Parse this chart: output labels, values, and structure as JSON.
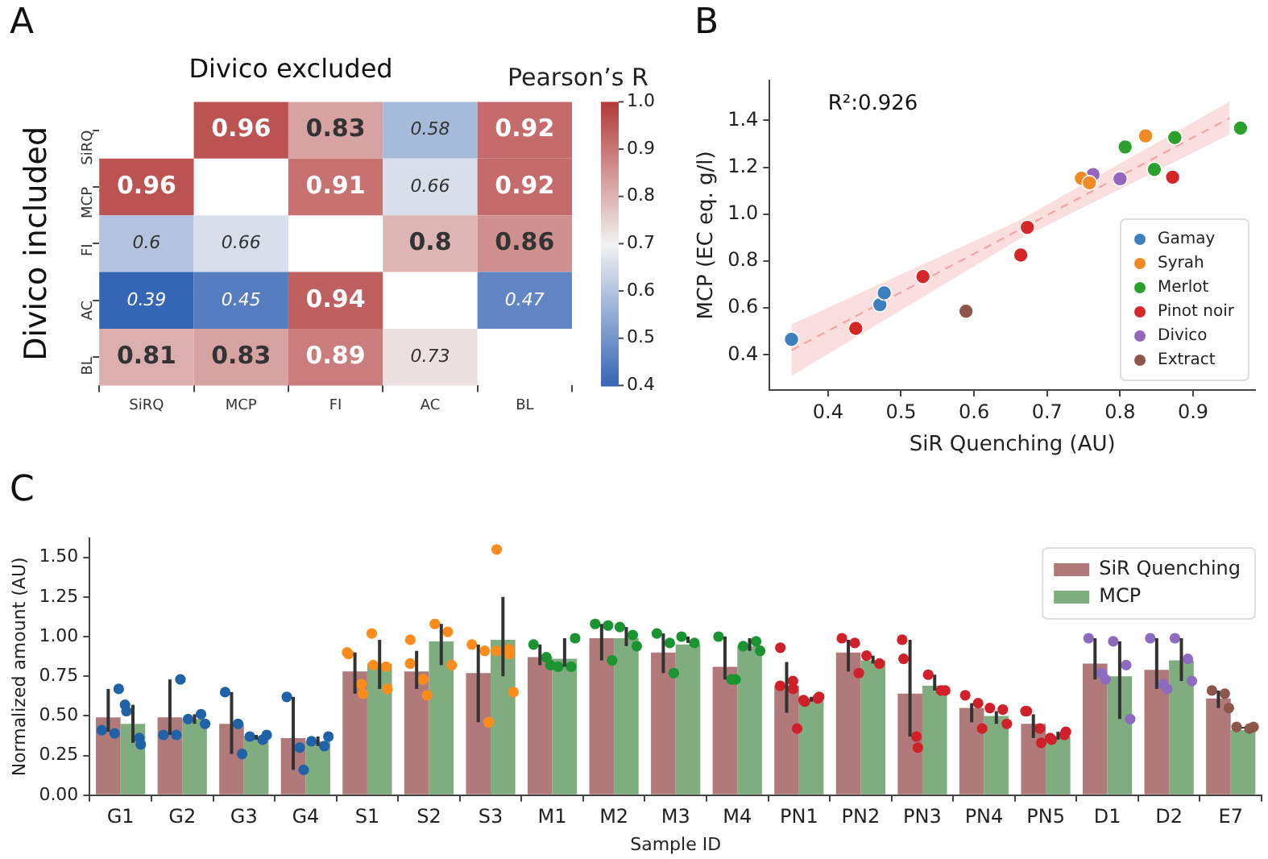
{
  "chart_data": [
    {
      "type": "heatmap",
      "title": "Divico excluded",
      "ylabel": "Divico included",
      "clabel": "Pearson’s R",
      "annotations": [
        "A"
      ],
      "categories": [
        "SiRQ",
        "MCP",
        "FI",
        "AC",
        "BL"
      ],
      "y_categories": [
        "SiRQ",
        "MCP",
        "FI",
        "AC",
        "BL"
      ],
      "cells": [
        [
          null,
          0.96,
          0.83,
          0.58,
          0.92
        ],
        [
          0.96,
          null,
          0.91,
          0.66,
          0.92
        ],
        [
          0.6,
          0.66,
          null,
          0.8,
          0.86
        ],
        [
          0.39,
          0.45,
          0.94,
          null,
          0.47
        ],
        [
          0.81,
          0.83,
          0.89,
          0.73,
          null
        ]
      ],
      "clim": [
        0.4,
        1.0
      ],
      "cticks": [
        0.4,
        0.5,
        0.6,
        0.7,
        0.8,
        0.9,
        {
          "value": 1,
          "label": "1.0"
        }
      ],
      "data_labels": true
    },
    {
      "type": "scatter",
      "xlabel": "SiR Quenching (AU)",
      "ylabel": "MCP (EC eq. g/l)",
      "annotations": [
        "B",
        "R²:0.926"
      ],
      "xlim": [
        0.32,
        0.985
      ],
      "ylim": [
        0.25,
        1.57
      ],
      "xticks": [
        0.4,
        0.5,
        0.6,
        0.7,
        0.8,
        0.9
      ],
      "yticks": [
        0.4,
        0.6,
        0.8,
        {
          "value": 1,
          "label": "1.0"
        },
        1.2,
        1.4
      ],
      "legend": "bottom right",
      "marker": "circle",
      "grid": false,
      "series": [
        {
          "name": "Gamay",
          "color": "#3b7fbf",
          "x": [
            0.35,
            0.471,
            0.477
          ],
          "values": [
            0.466,
            0.614,
            0.664
          ]
        },
        {
          "name": "Syrah",
          "color": "#f08a24",
          "x": [
            0.747,
            0.758,
            0.835
          ],
          "values": [
            1.153,
            1.134,
            1.334
          ]
        },
        {
          "name": "Merlot",
          "color": "#2ca02c",
          "x": [
            0.807,
            0.847,
            0.875,
            0.965
          ],
          "values": [
            1.287,
            1.191,
            1.327,
            1.367
          ]
        },
        {
          "name": "Pinot noir",
          "color": "#d62728",
          "x": [
            0.438,
            0.53,
            0.664,
            0.673,
            0.872
          ],
          "values": [
            0.513,
            0.734,
            0.826,
            0.944,
            1.158
          ]
        },
        {
          "name": "Divico",
          "color": "#9467bd",
          "x": [
            0.763,
            0.8
          ],
          "values": [
            1.169,
            1.151
          ]
        },
        {
          "name": "Extract",
          "color": "#8c564b",
          "x": [
            0.589
          ],
          "values": [
            0.586
          ]
        },
        {
          "type": "line",
          "color": "#f4a0a0",
          "line_style": "dashed",
          "marker": "none",
          "x": [
            0.35,
            0.66,
            0.95
          ],
          "values": [
            0.42,
            0.93,
            1.41
          ],
          "lower": [
            0.31,
            0.89,
            1.34
          ],
          "upper": [
            0.53,
            0.97,
            1.48
          ]
        }
      ]
    },
    {
      "type": "bar",
      "xlabel": "Sample ID",
      "ylabel": "Normalized amount (AU)",
      "annotations": [
        "C"
      ],
      "legend": "top right",
      "grid": false,
      "categories": [
        "G1",
        "G2",
        "G3",
        "G4",
        "S1",
        "S2",
        "S3",
        "M1",
        "M2",
        "M3",
        "M4",
        "PN1",
        "PN2",
        "PN3",
        "PN4",
        "PN5",
        "D1",
        "D2",
        "E7"
      ],
      "ylim": [
        0,
        1.62
      ],
      "yticks": [
        {
          "value": 0,
          "label": "0.00"
        },
        {
          "value": 0.25,
          "label": "0.25"
        },
        {
          "value": 0.5,
          "label": "0.50"
        },
        {
          "value": 0.75,
          "label": "0.75"
        },
        {
          "value": 1,
          "label": "1.00"
        },
        {
          "value": 1.25,
          "label": "1.25"
        },
        {
          "value": 1.5,
          "label": "1.50"
        }
      ],
      "series": [
        {
          "name": "SiR Quenching",
          "color": "#b07a7a",
          "values": [
            0.49,
            0.49,
            0.45,
            0.36,
            0.78,
            0.78,
            0.77,
            0.87,
            0.99,
            0.9,
            0.81,
            0.69,
            0.9,
            0.64,
            0.55,
            0.45,
            0.83,
            0.79,
            0.61
          ],
          "errors": [
            [
              0.4,
              0.67
            ],
            [
              0.38,
              0.73
            ],
            [
              0.26,
              0.65
            ],
            [
              0.16,
              0.62
            ],
            [
              0.64,
              0.9
            ],
            [
              0.67,
              0.91
            ],
            [
              0.46,
              0.95
            ],
            [
              0.82,
              0.95
            ],
            [
              0.85,
              1.08
            ],
            [
              0.77,
              1.02
            ],
            [
              0.73,
              1.0
            ],
            [
              0.52,
              0.84
            ],
            [
              0.78,
              0.98
            ],
            [
              0.37,
              0.98
            ],
            [
              0.46,
              0.58
            ],
            [
              0.36,
              0.51
            ],
            [
              0.73,
              0.99
            ],
            [
              0.67,
              0.99
            ],
            [
              0.55,
              0.66
            ]
          ]
        },
        {
          "name": "MCP",
          "color": "#80ad80",
          "values": [
            0.45,
            0.48,
            0.37,
            0.34,
            0.83,
            0.97,
            0.98,
            0.86,
            0.99,
            0.95,
            0.94,
            0.6,
            0.85,
            0.69,
            0.5,
            0.37,
            0.75,
            0.85,
            0.41
          ],
          "errors": [
            [
              0.33,
              0.57
            ],
            [
              0.45,
              0.51
            ],
            [
              0.35,
              0.38
            ],
            [
              0.31,
              0.37
            ],
            [
              0.67,
              0.98
            ],
            [
              0.82,
              1.08
            ],
            [
              0.75,
              1.25
            ],
            [
              0.81,
              0.99
            ],
            [
              0.94,
              1.06
            ],
            [
              0.96,
              1.0
            ],
            [
              0.91,
              0.99
            ],
            [
              0.59,
              0.62
            ],
            [
              0.83,
              0.88
            ],
            [
              0.66,
              0.76
            ],
            [
              0.45,
              0.53
            ],
            [
              0.35,
              0.4
            ],
            [
              0.48,
              0.97
            ],
            [
              0.72,
              0.99
            ],
            [
              0.42,
              0.43
            ]
          ]
        },
        {
          "type": "scatter",
          "x": [
            "G1",
            "G1",
            "G1",
            "G2",
            "G2",
            "G2",
            "G3",
            "G3",
            "G3",
            "G4",
            "G4",
            "G4",
            "S1",
            "S1",
            "S1",
            "S1",
            "S2",
            "S2",
            "S2",
            "S2",
            "S2",
            "S3",
            "S3",
            "S3",
            "M1",
            "M1",
            "M1",
            "M2",
            "M2",
            "M2",
            "M3",
            "M3",
            "M3",
            "M4",
            "M4",
            "M4",
            "PN1",
            "PN1",
            "PN1",
            "PN1",
            "PN1",
            "PN2",
            "PN2",
            "PN2",
            "PN3",
            "PN3",
            "PN3",
            "PN3",
            "PN4",
            "PN4",
            "PN4",
            "PN5",
            "PN5",
            "PN5",
            "PN5",
            "D1",
            "D1",
            "D1",
            "D2",
            "D2",
            "D2",
            "E7",
            "E7",
            "E7"
          ],
          "values": [
            0.41,
            0.39,
            0.67,
            0.38,
            0.38,
            0.73,
            0.65,
            0.45,
            0.26,
            0.62,
            0.3,
            0.16,
            0.9,
            0.89,
            0.7,
            0.64,
            0.98,
            0.83,
            0.73,
            0.73,
            0.63,
            0.95,
            0.91,
            0.46,
            0.95,
            0.87,
            0.82,
            1.08,
            1.07,
            0.85,
            1.02,
            0.96,
            0.77,
            1.0,
            0.73,
            0.73,
            0.93,
            0.69,
            0.67,
            0.72,
            0.42,
            0.99,
            0.96,
            0.77,
            0.98,
            0.86,
            0.37,
            0.3,
            0.63,
            0.58,
            0.42,
            0.53,
            0.53,
            0.42,
            0.33,
            0.99,
            0.77,
            0.73,
            0.99,
            0.7,
            0.67,
            0.66,
            0.64,
            0.55
          ],
          "colors": [
            "#1f62a8",
            "#1f62a8",
            "#1f62a8",
            "#1f62a8",
            "#1f62a8",
            "#1f62a8",
            "#1f62a8",
            "#1f62a8",
            "#1f62a8",
            "#1f62a8",
            "#1f62a8",
            "#1f62a8",
            "#ff8c1a",
            "#ff8c1a",
            "#ff8c1a",
            "#ff8c1a",
            "#ff8c1a",
            "#ff8c1a",
            "#ff8c1a",
            "#ff8c1a",
            "#ff8c1a",
            "#ff8c1a",
            "#ff8c1a",
            "#ff8c1a",
            "#1a9431",
            "#1a9431",
            "#1a9431",
            "#1a9431",
            "#1a9431",
            "#1a9431",
            "#1a9431",
            "#1a9431",
            "#1a9431",
            "#1a9431",
            "#1a9431",
            "#1a9431",
            "#d0202a",
            "#d0202a",
            "#d0202a",
            "#d0202a",
            "#d0202a",
            "#d0202a",
            "#d0202a",
            "#d0202a",
            "#d0202a",
            "#d0202a",
            "#d0202a",
            "#d0202a",
            "#d0202a",
            "#d0202a",
            "#d0202a",
            "#d0202a",
            "#d0202a",
            "#d0202a",
            "#d0202a",
            "#8c6bc0",
            "#8c6bc0",
            "#8c6bc0",
            "#8c6bc0",
            "#8c6bc0",
            "#8c6bc0",
            "#8c564b",
            "#8c564b",
            "#8c564b"
          ]
        },
        {
          "type": "scatter",
          "x": [
            "G1",
            "G1",
            "G1",
            "G1",
            "G2",
            "G2",
            "G2",
            "G3",
            "G3",
            "G3",
            "G4",
            "G4",
            "G4",
            "S1",
            "S1",
            "S1",
            "S1",
            "S2",
            "S2",
            "S2",
            "S3",
            "S3",
            "S3",
            "S3",
            "S3",
            "M1",
            "M1",
            "M1",
            "M2",
            "M2",
            "M2",
            "M3",
            "M3",
            "M4",
            "M4",
            "M4",
            "PN1",
            "PN1",
            "PN1",
            "PN1",
            "PN2",
            "PN2",
            "PN3",
            "PN3",
            "PN3",
            "PN4",
            "PN4",
            "PN4",
            "PN5",
            "PN5",
            "PN5",
            "PN5",
            "D1",
            "D1",
            "D1",
            "D2",
            "D2",
            "D2",
            "E7",
            "E7",
            "E7"
          ],
          "values": [
            0.57,
            0.53,
            0.36,
            0.32,
            0.48,
            0.51,
            0.45,
            0.37,
            0.35,
            0.38,
            0.34,
            0.31,
            0.37,
            1.02,
            0.82,
            0.81,
            0.67,
            1.08,
            1.03,
            0.82,
            1.55,
            0.91,
            0.89,
            0.92,
            0.65,
            0.81,
            0.81,
            0.99,
            1.06,
            1.01,
            0.94,
            1.0,
            0.96,
            0.94,
            0.97,
            0.91,
            0.6,
            0.59,
            0.61,
            0.62,
            0.88,
            0.83,
            0.76,
            0.66,
            0.66,
            0.55,
            0.54,
            0.45,
            0.36,
            0.35,
            0.38,
            0.4,
            0.97,
            0.82,
            0.48,
            0.99,
            0.86,
            0.72,
            0.43,
            0.42,
            0.43
          ],
          "colors": [
            "#1f62a8",
            "#1f62a8",
            "#1f62a8",
            "#1f62a8",
            "#1f62a8",
            "#1f62a8",
            "#1f62a8",
            "#1f62a8",
            "#1f62a8",
            "#1f62a8",
            "#1f62a8",
            "#1f62a8",
            "#1f62a8",
            "#ff8c1a",
            "#ff8c1a",
            "#ff8c1a",
            "#ff8c1a",
            "#ff8c1a",
            "#ff8c1a",
            "#ff8c1a",
            "#ff8c1a",
            "#ff8c1a",
            "#ff8c1a",
            "#ff8c1a",
            "#ff8c1a",
            "#1a9431",
            "#1a9431",
            "#1a9431",
            "#1a9431",
            "#1a9431",
            "#1a9431",
            "#1a9431",
            "#1a9431",
            "#1a9431",
            "#1a9431",
            "#1a9431",
            "#d0202a",
            "#d0202a",
            "#d0202a",
            "#d0202a",
            "#d0202a",
            "#d0202a",
            "#d0202a",
            "#d0202a",
            "#d0202a",
            "#d0202a",
            "#d0202a",
            "#d0202a",
            "#d0202a",
            "#d0202a",
            "#d0202a",
            "#d0202a",
            "#8c6bc0",
            "#8c6bc0",
            "#8c6bc0",
            "#8c6bc0",
            "#8c6bc0",
            "#8c6bc0",
            "#8c564b",
            "#8c564b",
            "#8c564b"
          ]
        }
      ]
    }
  ]
}
